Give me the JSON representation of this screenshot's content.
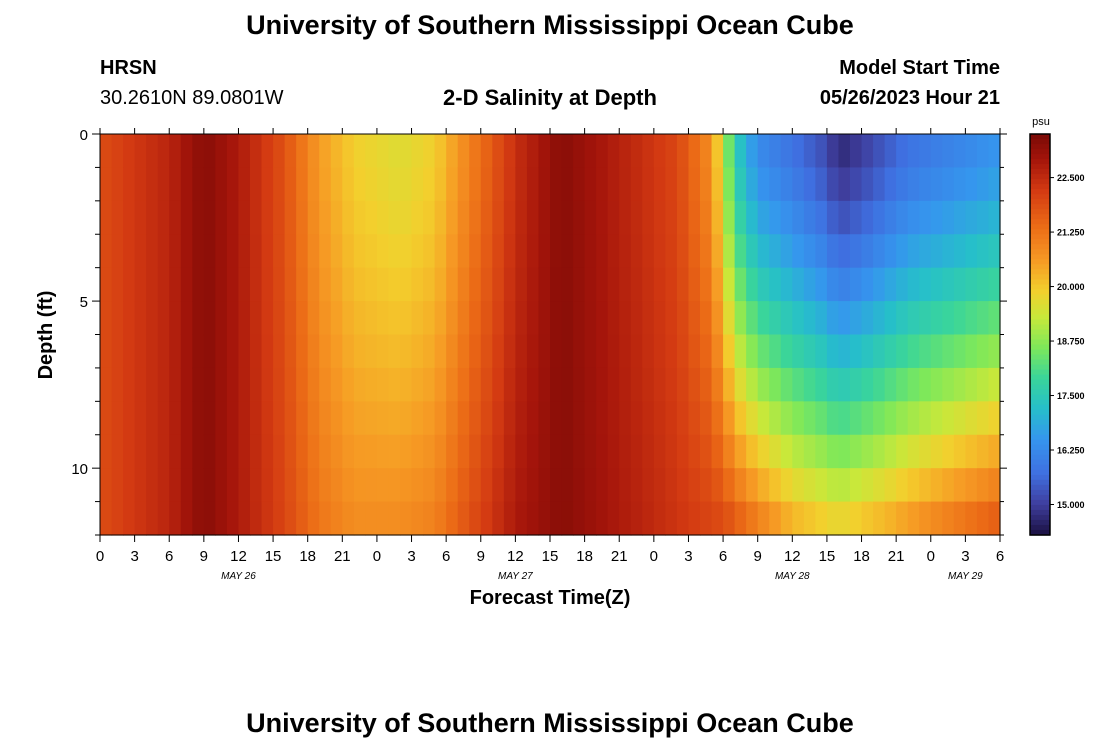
{
  "header": {
    "title": "University of Southern Mississippi Ocean Cube",
    "station": "HRSN",
    "coords": "30.2610N  89.0801W",
    "subtitle": "2-D Salinity at Depth",
    "model_start_label": "Model Start Time",
    "model_start_value": "05/26/2023 Hour 21"
  },
  "footer": {
    "title": "University of Southern Mississippi Ocean Cube"
  },
  "chart_data": {
    "type": "heatmap",
    "title": "2-D Salinity at Depth",
    "xlabel": "Forecast Time(Z)",
    "ylabel": "Depth (ft)",
    "x_tick_labels": [
      "0",
      "3",
      "6",
      "9",
      "12",
      "15",
      "18",
      "21",
      "0",
      "3",
      "6",
      "9",
      "12",
      "15",
      "18",
      "21",
      "0",
      "3",
      "6",
      "9",
      "12",
      "15",
      "18",
      "21",
      "0",
      "3",
      "6"
    ],
    "date_labels": [
      {
        "label": "MAY 26",
        "hour": 12
      },
      {
        "label": "MAY 27",
        "hour": 36
      },
      {
        "label": "MAY 28",
        "hour": 60
      },
      {
        "label": "MAY 29",
        "hour": 75
      }
    ],
    "xlim_hours": [
      0,
      78
    ],
    "y_tick_labels": [
      "0",
      "5",
      "10"
    ],
    "y_ticks": [
      0,
      5,
      10
    ],
    "ylim": [
      0,
      12
    ],
    "depth_rows": 12,
    "colorbar": {
      "unit": "psu",
      "min": 14.3,
      "max": 23.5,
      "tick_labels": [
        "15.000",
        "16.250",
        "17.500",
        "18.750",
        "20.000",
        "21.250",
        "22.500"
      ],
      "ticks": [
        15.0,
        16.25,
        17.5,
        18.75,
        20.0,
        21.25,
        22.5
      ],
      "colormap": [
        {
          "v": 14.3,
          "c": "#1a1040"
        },
        {
          "v": 15.0,
          "c": "#3f3e9e"
        },
        {
          "v": 15.7,
          "c": "#3f6fe0"
        },
        {
          "v": 16.5,
          "c": "#3596ee"
        },
        {
          "v": 17.2,
          "c": "#26bfca"
        },
        {
          "v": 17.9,
          "c": "#3ad59a"
        },
        {
          "v": 18.6,
          "c": "#7ee85a"
        },
        {
          "v": 19.3,
          "c": "#c8e83a"
        },
        {
          "v": 19.9,
          "c": "#f3cf2d"
        },
        {
          "v": 20.6,
          "c": "#f69a24"
        },
        {
          "v": 21.4,
          "c": "#eb6a16"
        },
        {
          "v": 22.2,
          "c": "#d33a12"
        },
        {
          "v": 22.9,
          "c": "#a5150b"
        },
        {
          "v": 23.5,
          "c": "#7a0a05"
        }
      ]
    },
    "surface_salinity_by_hour": [
      {
        "h": 0,
        "v": 21.9
      },
      {
        "h": 6,
        "v": 22.6
      },
      {
        "h": 9,
        "v": 23.3
      },
      {
        "h": 12,
        "v": 22.8
      },
      {
        "h": 16,
        "v": 21.8
      },
      {
        "h": 19,
        "v": 20.6
      },
      {
        "h": 22,
        "v": 19.9
      },
      {
        "h": 26,
        "v": 19.6
      },
      {
        "h": 29,
        "v": 19.9
      },
      {
        "h": 32,
        "v": 21.0
      },
      {
        "h": 36,
        "v": 22.4
      },
      {
        "h": 40,
        "v": 23.3
      },
      {
        "h": 44,
        "v": 22.8
      },
      {
        "h": 50,
        "v": 22.0
      },
      {
        "h": 53,
        "v": 20.8
      },
      {
        "h": 54,
        "v": 19.3
      },
      {
        "h": 55,
        "v": 17.6
      },
      {
        "h": 57,
        "v": 16.3
      },
      {
        "h": 60,
        "v": 15.8
      },
      {
        "h": 63,
        "v": 15.2
      },
      {
        "h": 64,
        "v": 14.7
      },
      {
        "h": 66,
        "v": 15.0
      },
      {
        "h": 70,
        "v": 15.8
      },
      {
        "h": 78,
        "v": 16.5
      }
    ],
    "bottom_salinity_by_hour": [
      {
        "h": 0,
        "v": 21.9
      },
      {
        "h": 6,
        "v": 22.6
      },
      {
        "h": 9,
        "v": 23.3
      },
      {
        "h": 12,
        "v": 22.8
      },
      {
        "h": 16,
        "v": 22.0
      },
      {
        "h": 19,
        "v": 21.2
      },
      {
        "h": 22,
        "v": 20.8
      },
      {
        "h": 26,
        "v": 20.8
      },
      {
        "h": 29,
        "v": 21.0
      },
      {
        "h": 32,
        "v": 21.8
      },
      {
        "h": 36,
        "v": 22.8
      },
      {
        "h": 40,
        "v": 23.3
      },
      {
        "h": 44,
        "v": 22.9
      },
      {
        "h": 50,
        "v": 22.3
      },
      {
        "h": 54,
        "v": 21.9
      },
      {
        "h": 57,
        "v": 21.0
      },
      {
        "h": 60,
        "v": 20.2
      },
      {
        "h": 64,
        "v": 19.7
      },
      {
        "h": 68,
        "v": 20.2
      },
      {
        "h": 72,
        "v": 20.8
      },
      {
        "h": 78,
        "v": 21.6
      }
    ]
  }
}
